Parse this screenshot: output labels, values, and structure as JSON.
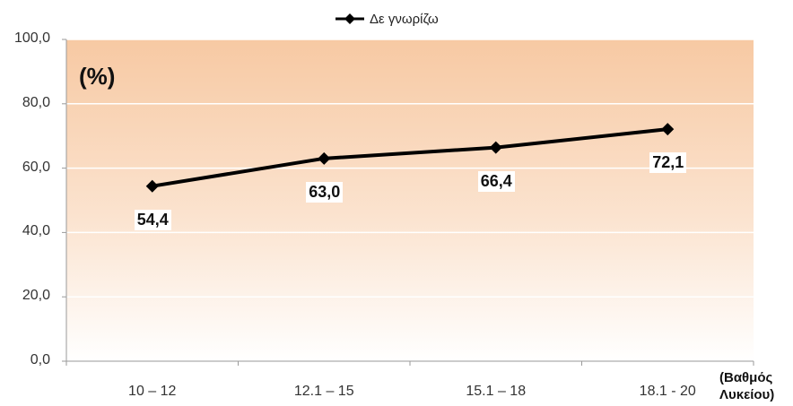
{
  "chart_data": {
    "type": "line",
    "categories": [
      "10 – 12",
      "12.1 – 15",
      "15.1 – 18",
      "18.1 - 20"
    ],
    "series": [
      {
        "name": "Δε γνωρίζω",
        "values": [
          54.4,
          63.0,
          66.4,
          72.1
        ],
        "value_labels": [
          "54,4",
          "63,0",
          "66,4",
          "72,1"
        ],
        "color": "#000000"
      }
    ],
    "yticks": [
      "0,0",
      "20,0",
      "40,0",
      "60,0",
      "80,0",
      "100,0"
    ],
    "ylim": [
      0,
      100
    ],
    "ylabel": "(%)",
    "xlabel": "(Βαθμός Λυκείου)",
    "legend_position": "top",
    "grid": true,
    "background_gradient": [
      "#f7c8a0",
      "#fdf0e6",
      "#ffffff"
    ]
  }
}
